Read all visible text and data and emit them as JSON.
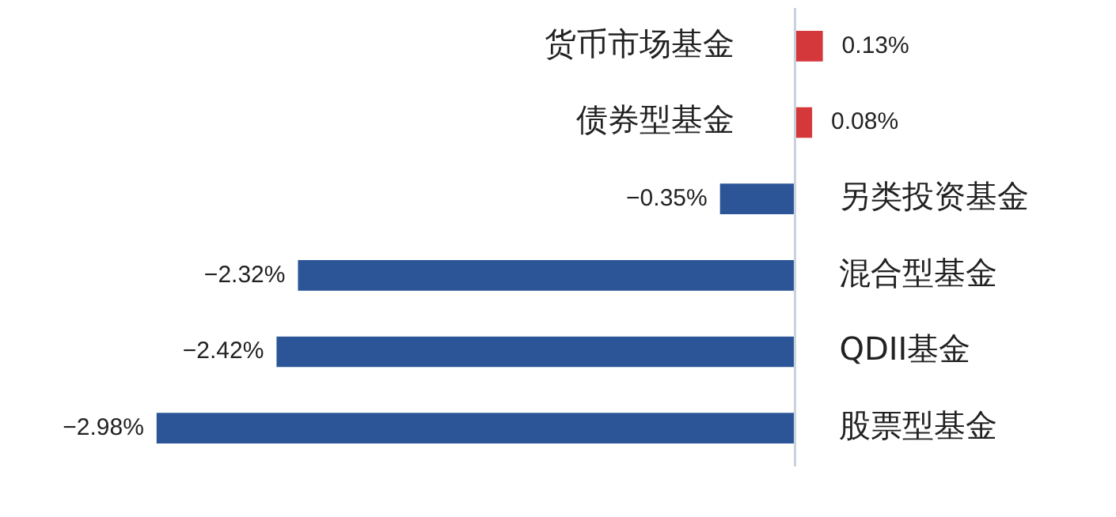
{
  "chart_data": {
    "type": "bar",
    "orientation": "horizontal",
    "categories": [
      "货币市场基金",
      "债券型基金",
      "另类投资基金",
      "混合型基金",
      "QDII基金",
      "股票型基金"
    ],
    "values": [
      0.13,
      0.08,
      -0.35,
      -2.32,
      -2.42,
      -2.98
    ],
    "colors": [
      "#d5383a",
      "#d5383a",
      "#2b5597",
      "#2b5597",
      "#2b5597",
      "#2b5597"
    ],
    "value_labels": [
      "0.13%",
      "0.08%",
      "−0.35%",
      "−2.32%",
      "−2.42%",
      "−2.98%"
    ],
    "legend": false
  }
}
